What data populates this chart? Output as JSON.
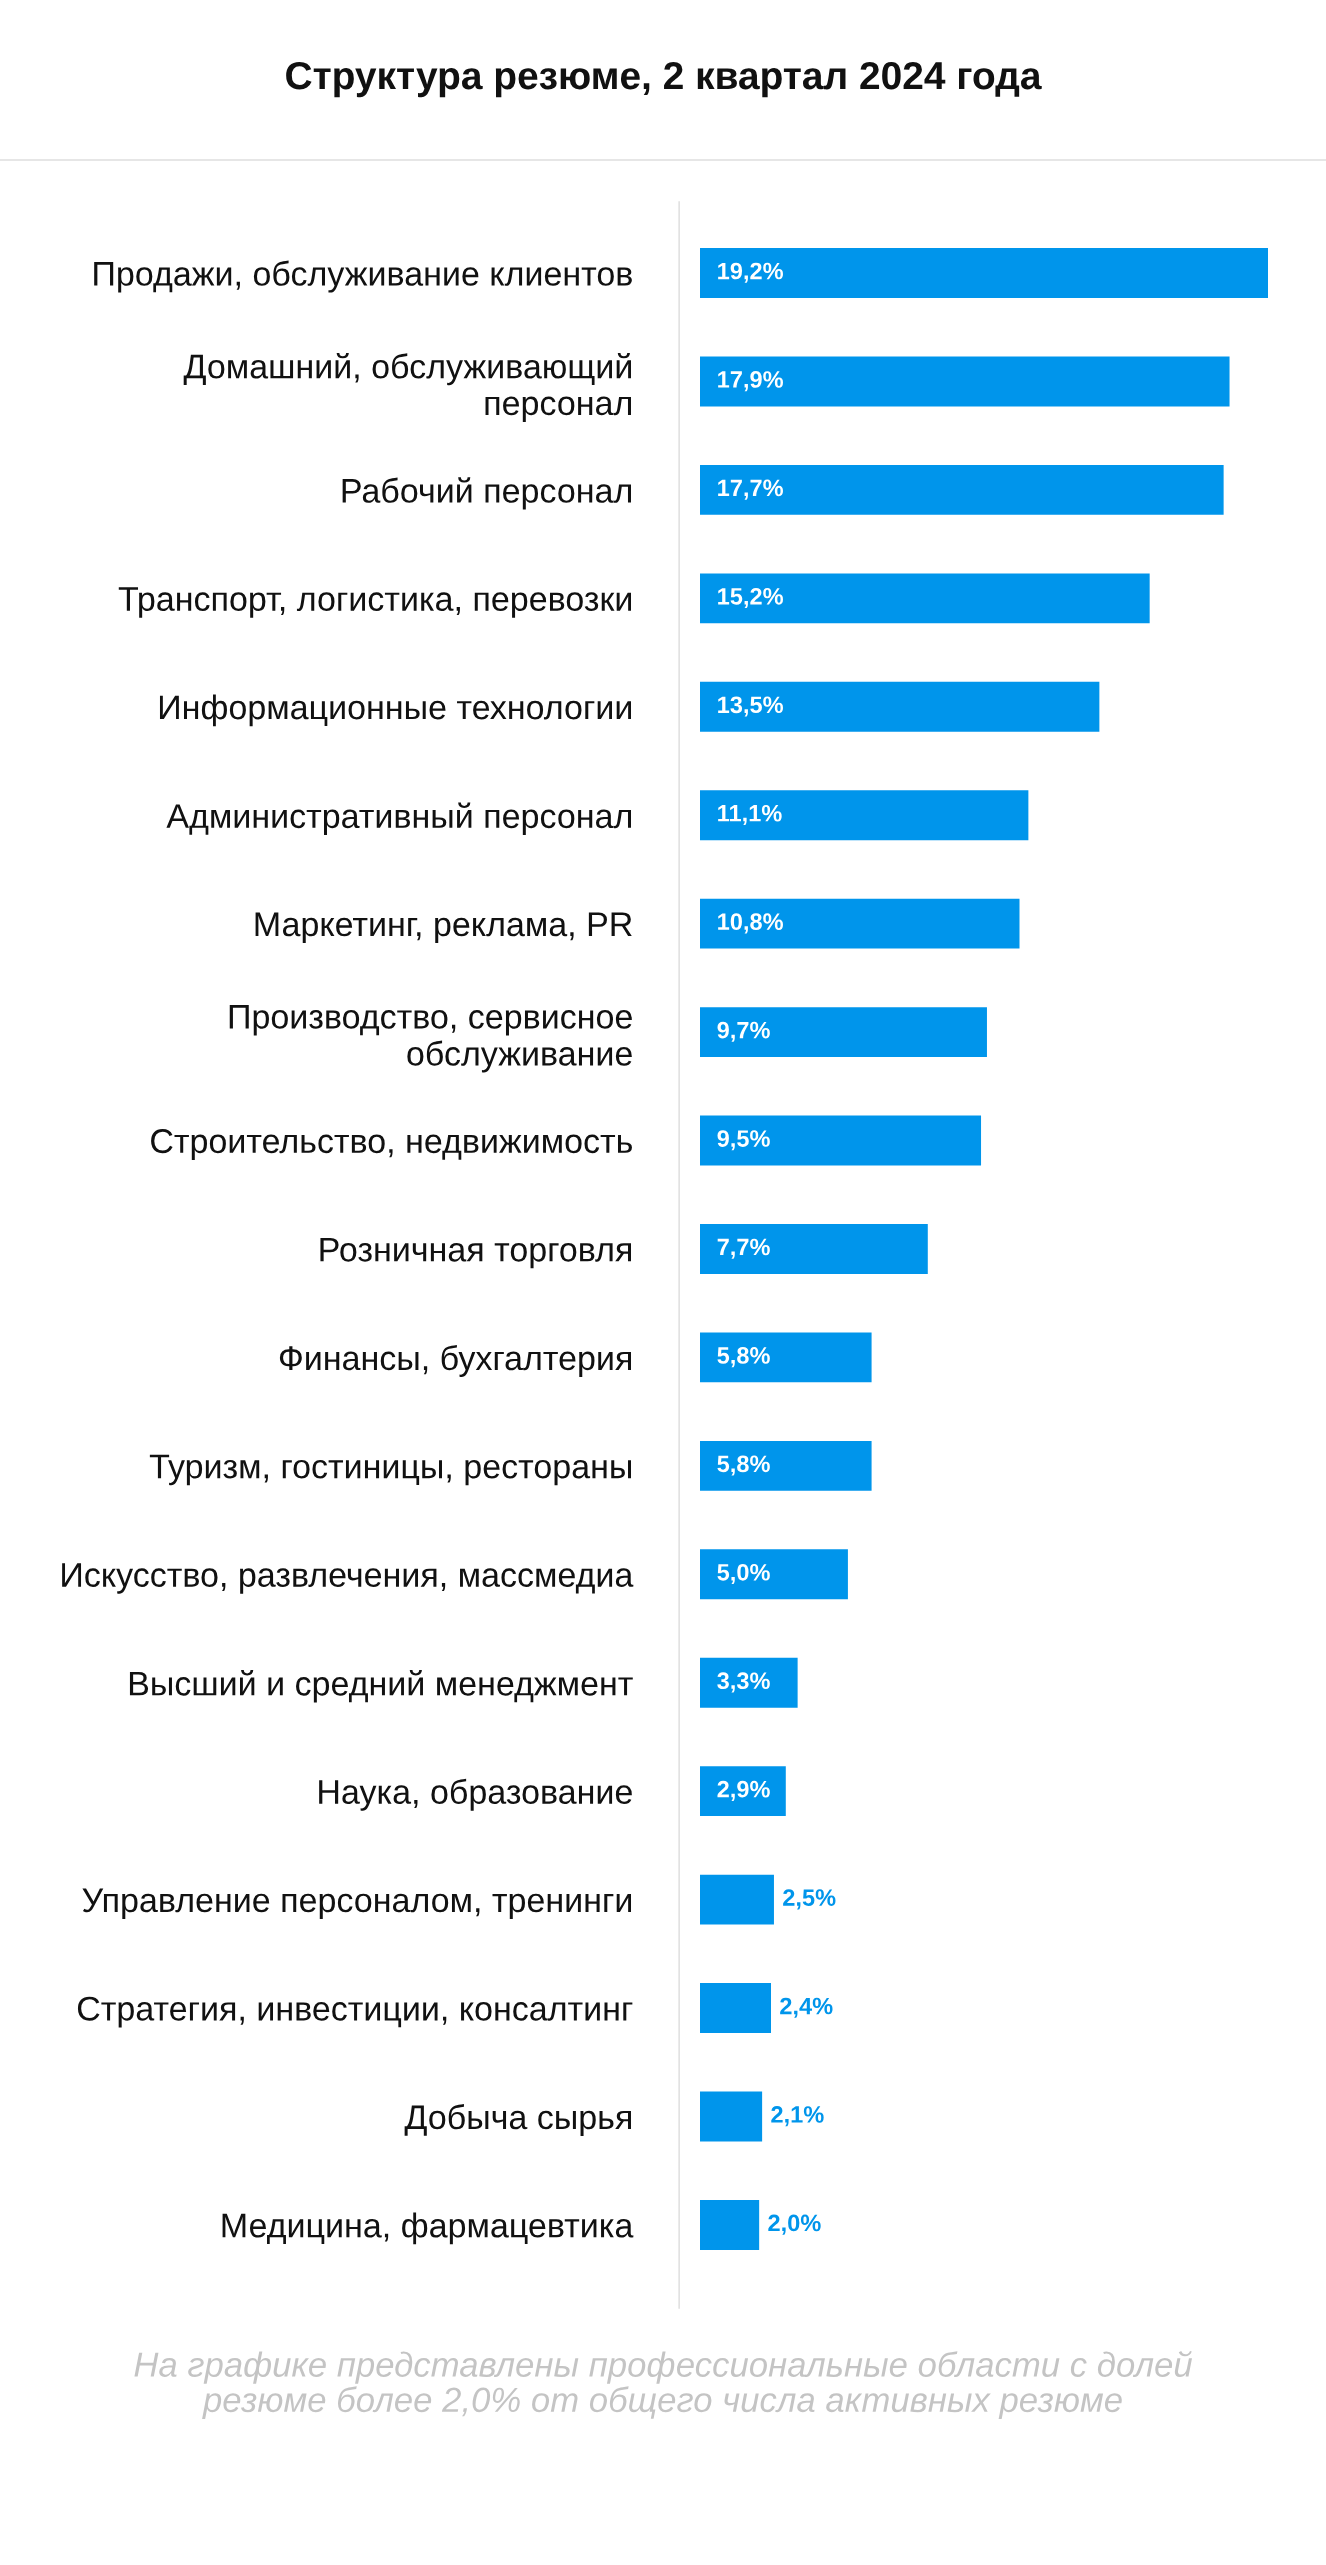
{
  "chart_data": {
    "type": "bar",
    "orientation": "horizontal",
    "title": "Структура резюме, 2 квартал 2024 года",
    "categories": [
      "Продажи, обслуживание клиентов",
      "Домашний, обслуживающий\nперсонал",
      "Рабочий персонал",
      "Транспорт, логистика, перевозки",
      "Информационные технологии",
      "Административный персонал",
      "Маркетинг, реклама, PR",
      "Производство, сервисное\nобслуживание",
      "Строительство, недвижимость",
      "Розничная торговля",
      "Финансы, бухгалтерия",
      "Туризм, гостиницы, рестораны",
      "Искусство, развлечения, массмедиа",
      "Высший и средний менеджмент",
      "Наука, образование",
      "Управление персоналом, тренинги",
      "Стратегия, инвестиции, консалтинг",
      "Добыча сырья",
      "Медицина, фармацевтика"
    ],
    "values": [
      19.2,
      17.9,
      17.7,
      15.2,
      13.5,
      11.1,
      10.8,
      9.7,
      9.5,
      7.7,
      5.8,
      5.8,
      5.0,
      3.3,
      2.9,
      2.5,
      2.4,
      2.1,
      2.0
    ],
    "value_labels": [
      "19,2%",
      "17,9%",
      "17,7%",
      "15,2%",
      "13,5%",
      "11,1%",
      "10,8%",
      "9,7%",
      "9,5%",
      "7,7%",
      "5,8%",
      "5,8%",
      "5,0%",
      "3,3%",
      "2,9%",
      "2,5%",
      "2,4%",
      "2,1%",
      "2,0%"
    ],
    "color": "#0095eb",
    "tick_labels": "y",
    "annotations": [
      "На графике представлены профессиональные области с долей\nрезюме более 2,0% от общего числа активных резюме"
    ]
  }
}
